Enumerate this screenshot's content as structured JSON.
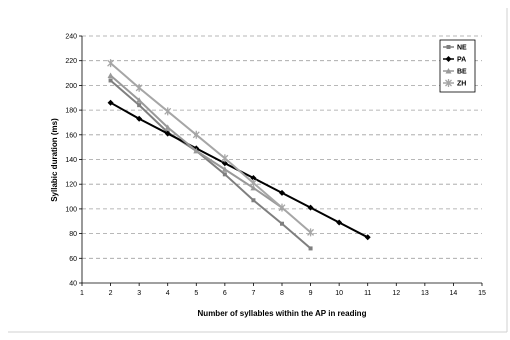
{
  "chart_data": {
    "type": "line",
    "xlabel": "Number of syllables within the AP in reading",
    "ylabel": "Syllabic duration (ms)",
    "xlim": [
      1,
      15
    ],
    "ylim": [
      40,
      240
    ],
    "xticks": [
      1,
      2,
      3,
      4,
      5,
      6,
      7,
      8,
      9,
      10,
      11,
      12,
      13,
      14,
      15
    ],
    "yticks": [
      40,
      60,
      80,
      100,
      120,
      140,
      160,
      180,
      200,
      220,
      240
    ],
    "grid": "horizontal dashed",
    "legend": "top-right",
    "series": [
      {
        "name": "NE",
        "color": "#7f7f7f",
        "marker": "square",
        "x": [
          2,
          3,
          4,
          5,
          6,
          7,
          8,
          9
        ],
        "y": [
          204,
          184,
          162,
          147,
          128,
          107,
          88,
          68
        ]
      },
      {
        "name": "PA",
        "color": "#000000",
        "marker": "diamond",
        "x": [
          2,
          3,
          4,
          5,
          6,
          7,
          8,
          9,
          10,
          11
        ],
        "y": [
          186,
          173,
          161,
          149,
          137,
          125,
          113,
          101,
          89,
          77
        ]
      },
      {
        "name": "BE",
        "color": "#999999",
        "marker": "triangle",
        "x": [
          2,
          3,
          4,
          5,
          6,
          7,
          8
        ],
        "y": [
          208,
          188,
          166,
          147,
          132,
          117,
          101
        ]
      },
      {
        "name": "ZH",
        "color": "#a6a6a6",
        "marker": "star",
        "x": [
          2,
          3,
          4,
          5,
          6,
          7,
          8,
          9
        ],
        "y": [
          218,
          198,
          179,
          160,
          141,
          121,
          101,
          81
        ]
      }
    ]
  }
}
